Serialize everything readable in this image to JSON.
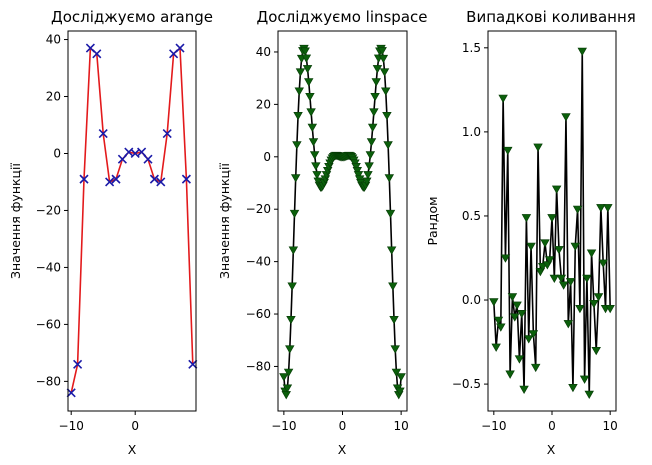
{
  "chart_data": [
    {
      "type": "line",
      "title": "Досліджуємо arange",
      "xlabel": "X",
      "ylabel": "Значення функції",
      "xlim": [
        -10.5,
        9.5
      ],
      "ylim": [
        -90.4,
        43
      ],
      "xticks": [
        -10,
        0
      ],
      "yticks": [
        -80,
        -60,
        -40,
        -20,
        0,
        20,
        40
      ],
      "grid": false,
      "legend": "none",
      "series": [
        {
          "line_color": "#e31a1c",
          "marker": "x",
          "marker_color": "#1a1aa8",
          "x": [
            -10,
            -9,
            -8,
            -7,
            -6,
            -5,
            -4,
            -3,
            -2,
            -1,
            0,
            1,
            2,
            3,
            4,
            5,
            6,
            7,
            8,
            9
          ],
          "y": [
            -84,
            -74,
            -9,
            37,
            35,
            7,
            -10,
            -9,
            -2,
            0.5,
            0,
            0.5,
            -2,
            -9,
            -10,
            7,
            35,
            37,
            -9,
            -74
          ]
        }
      ]
    },
    {
      "type": "line",
      "title": "Досліджуємо linspace",
      "xlabel": "X",
      "ylabel": "Значення функції",
      "xlim": [
        -11,
        11
      ],
      "ylim": [
        -97,
        48
      ],
      "xticks": [
        -10,
        0,
        10
      ],
      "yticks": [
        -80,
        -60,
        -40,
        -20,
        0,
        20,
        40
      ],
      "grid": false,
      "legend": "none",
      "series": [
        {
          "line_color": "#000000",
          "marker": "v",
          "marker_color": "#0b5f0b",
          "function": "x^2*cos(x)",
          "x_start": -10,
          "x_stop": 10,
          "points": 100
        }
      ]
    },
    {
      "type": "line",
      "title": "Випадкові коливання",
      "xlabel": "X",
      "ylabel": "Рандом",
      "xlim": [
        -11,
        11
      ],
      "ylim": [
        -0.66,
        1.6
      ],
      "xticks": [
        -10,
        0,
        10
      ],
      "yticks": [
        -0.5,
        0.0,
        0.5,
        1.0,
        1.5
      ],
      "grid": false,
      "legend": "none",
      "series": [
        {
          "line_color": "#000000",
          "marker": "v",
          "marker_color": "#0b5f0b",
          "x": [
            -10,
            -9.6,
            -9.2,
            -8.8,
            -8.4,
            -8,
            -7.6,
            -7.2,
            -6.8,
            -6.4,
            -6,
            -5.6,
            -5.2,
            -4.8,
            -4.4,
            -4,
            -3.6,
            -3.2,
            -2.8,
            -2.4,
            -2,
            -1.6,
            -1.2,
            -0.8,
            -0.4,
            0,
            0.4,
            0.8,
            1.2,
            1.6,
            2,
            2.4,
            2.8,
            3.2,
            3.6,
            4,
            4.4,
            4.8,
            5.2,
            5.6,
            6,
            6.4,
            6.8,
            7.2,
            7.6,
            8,
            8.4,
            8.8,
            9.2,
            9.6,
            10
          ],
          "y": [
            -0.01,
            -0.28,
            -0.12,
            -0.16,
            1.2,
            0.25,
            0.89,
            -0.44,
            0.02,
            -0.1,
            -0.03,
            -0.35,
            -0.08,
            -0.53,
            0.49,
            -0.23,
            0.32,
            -0.2,
            -0.4,
            0.91,
            0.17,
            0.2,
            0.34,
            0.21,
            0.24,
            0.49,
            0.13,
            0.66,
            0.3,
            0.13,
            0.09,
            1.09,
            -0.14,
            0.11,
            -0.52,
            0.32,
            0.54,
            -0.05,
            1.48,
            -0.47,
            0.13,
            -0.56,
            0.28,
            -0.02,
            -0.3,
            0.02,
            0.55,
            0.22,
            -0.05,
            0.55,
            -0.05
          ]
        }
      ]
    }
  ]
}
